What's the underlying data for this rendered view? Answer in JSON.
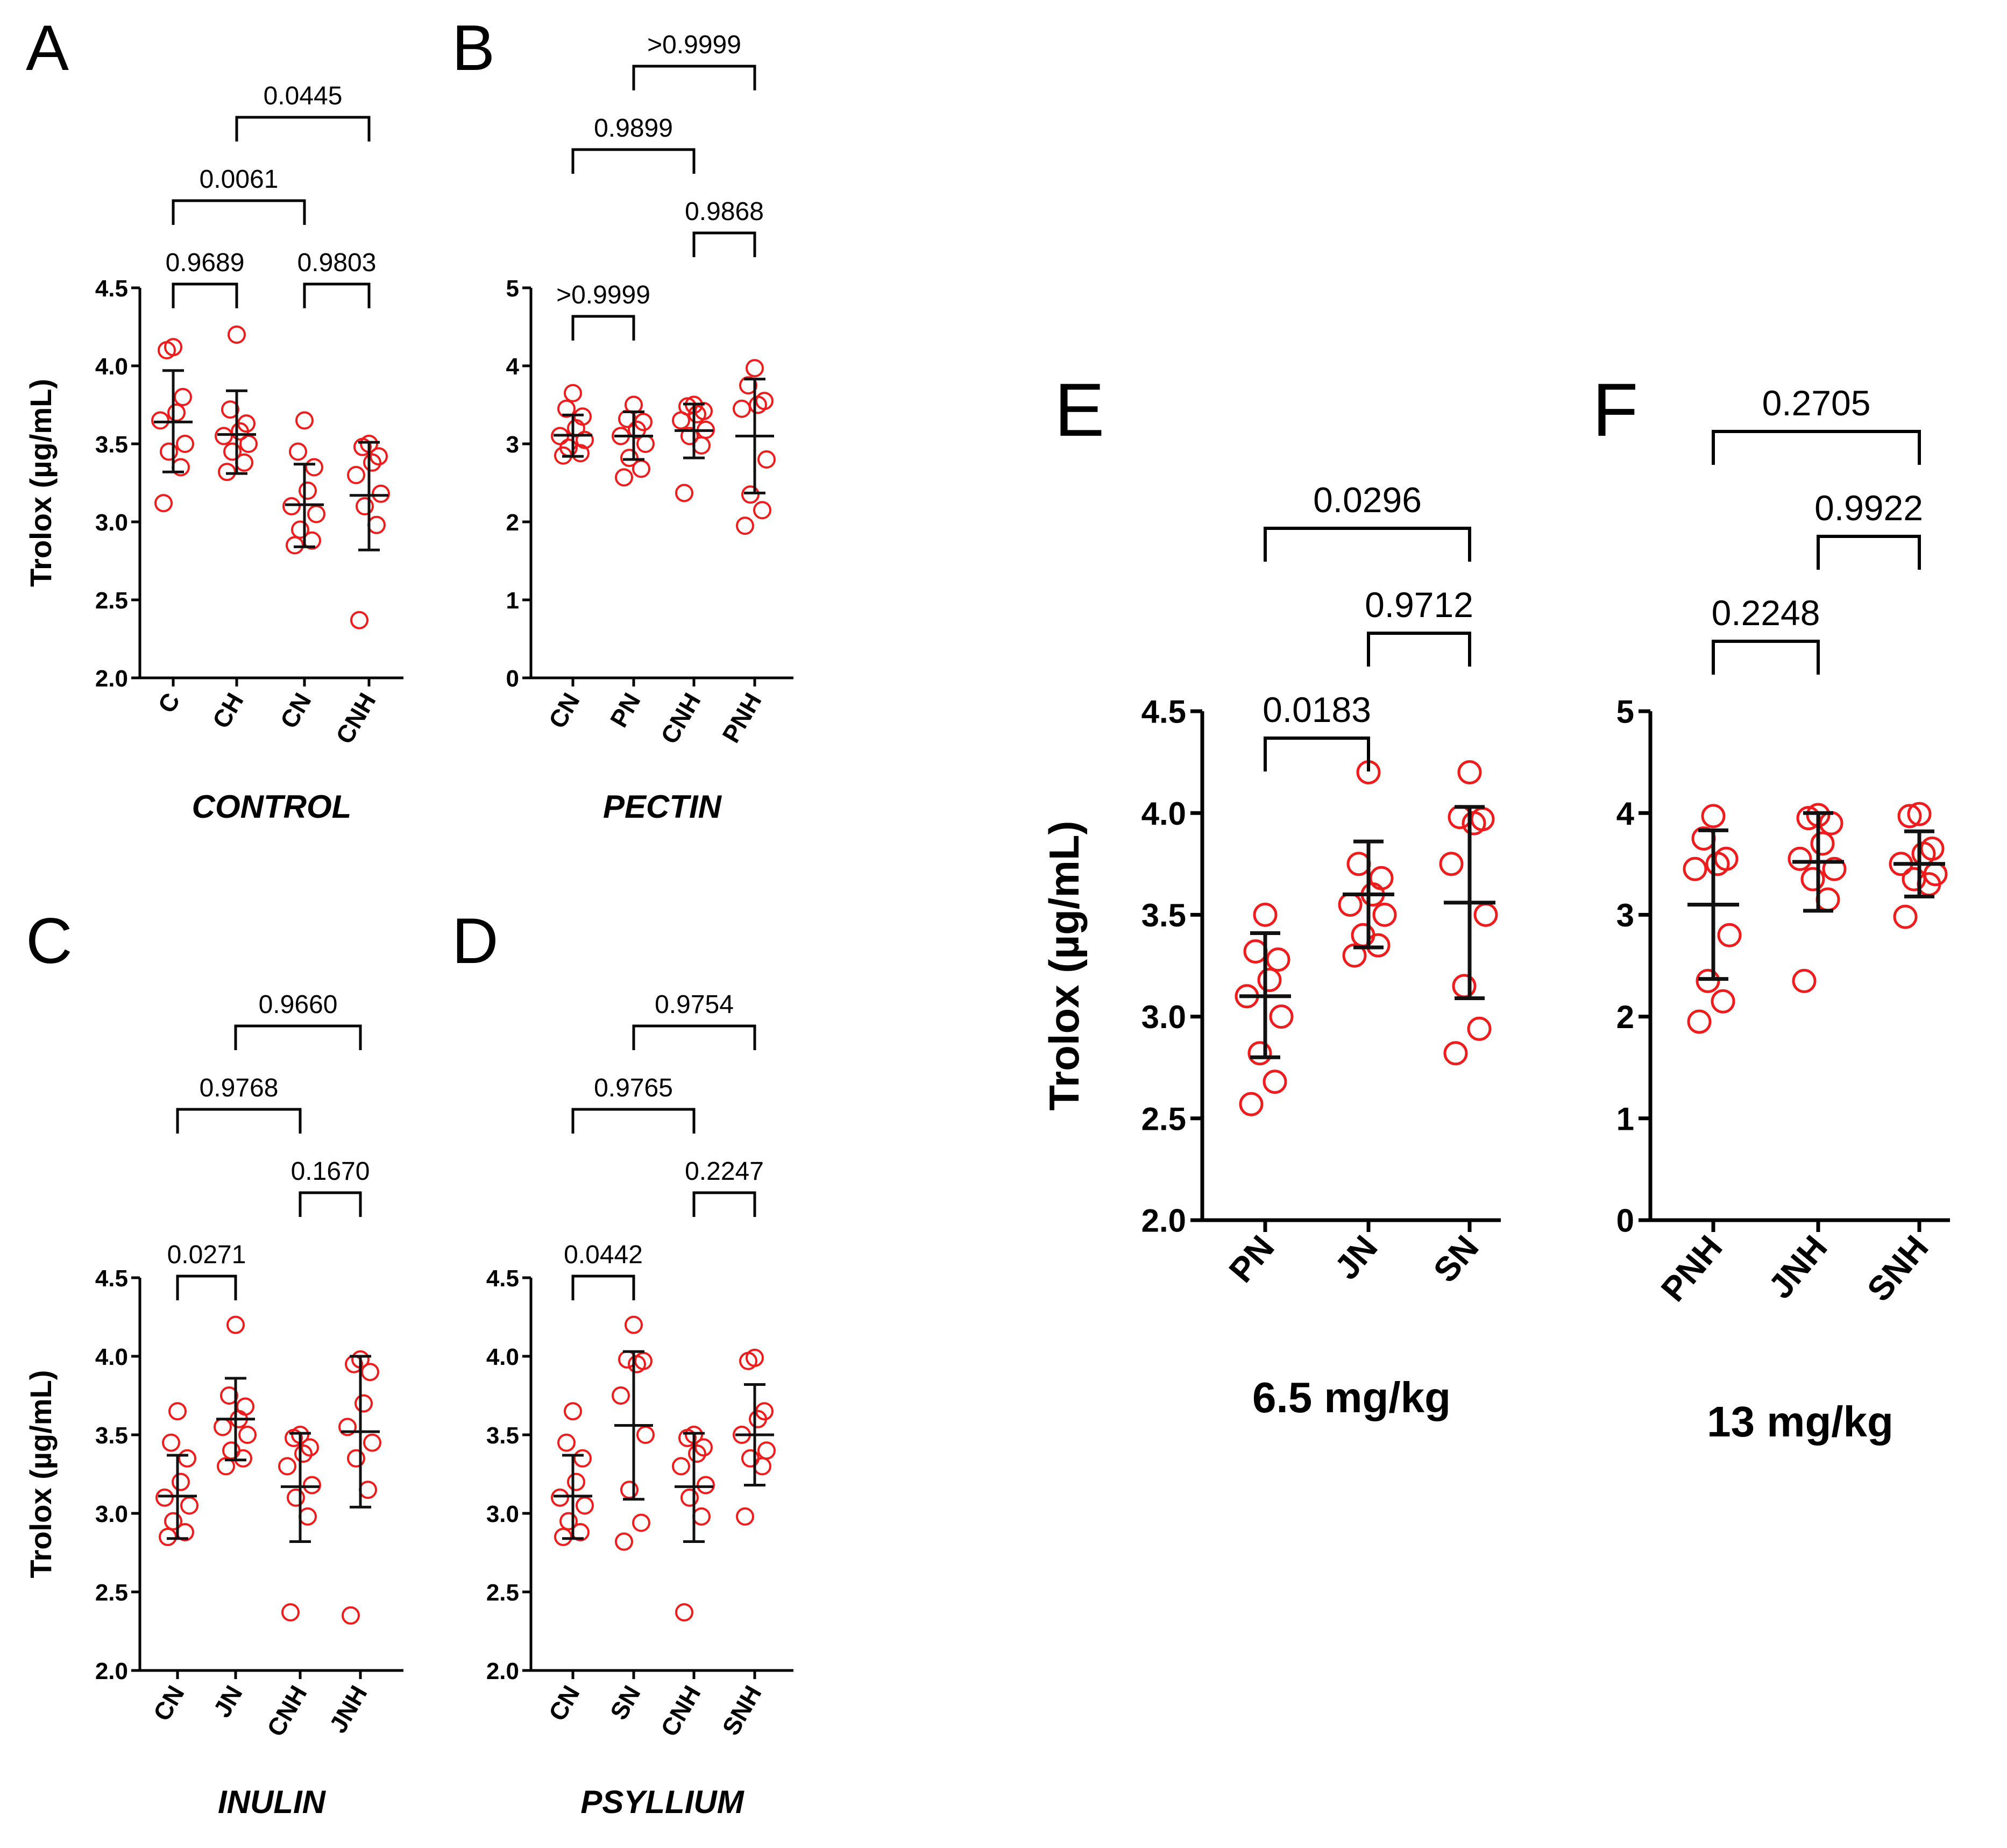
{
  "figure": {
    "y_axis_label": "Trolox (µg/mL)"
  },
  "chart_data": [
    {
      "panel": "A",
      "type": "scatter",
      "title": "CONTROL",
      "ylabel": "Trolox (µg/mL)",
      "ylim": [
        2.0,
        4.5
      ],
      "yticks": [
        "2.0",
        "2.5",
        "3.0",
        "3.5",
        "4.0",
        "4.5"
      ],
      "categories": [
        "C",
        "CH",
        "CN",
        "CNH"
      ],
      "groups": [
        {
          "points": [
            3.12,
            3.35,
            3.45,
            3.5,
            3.65,
            3.7,
            3.8,
            4.1,
            4.12
          ],
          "mean": 3.64,
          "error_low": 3.32,
          "error_high": 3.97
        },
        {
          "points": [
            3.32,
            3.38,
            3.45,
            3.5,
            3.55,
            3.58,
            3.63,
            3.72,
            4.2
          ],
          "mean": 3.56,
          "error_low": 3.31,
          "error_high": 3.84
        },
        {
          "points": [
            2.85,
            2.88,
            2.95,
            3.05,
            3.1,
            3.2,
            3.35,
            3.45,
            3.65
          ],
          "mean": 3.11,
          "error_low": 2.84,
          "error_high": 3.37
        },
        {
          "points": [
            2.37,
            2.98,
            3.1,
            3.18,
            3.3,
            3.38,
            3.42,
            3.48,
            3.5
          ],
          "mean": 3.17,
          "error_low": 2.82,
          "error_high": 3.51
        }
      ],
      "comparisons": [
        {
          "pair": [
            0,
            1
          ],
          "p": "0.9689",
          "level": 0
        },
        {
          "pair": [
            2,
            3
          ],
          "p": "0.9803",
          "level": 0
        },
        {
          "pair": [
            0,
            2
          ],
          "p": "0.0061",
          "level": 1
        },
        {
          "pair": [
            1,
            3
          ],
          "p": "0.0445",
          "level": 2
        }
      ]
    },
    {
      "panel": "B",
      "type": "scatter",
      "title": "PECTIN",
      "ylabel": "",
      "ylim": [
        0,
        5
      ],
      "yticks": [
        "0",
        "1",
        "2",
        "3",
        "4",
        "5"
      ],
      "categories": [
        "CN",
        "PN",
        "CNH",
        "PNH"
      ],
      "groups": [
        {
          "points": [
            2.85,
            2.88,
            2.95,
            3.05,
            3.1,
            3.2,
            3.35,
            3.45,
            3.65
          ],
          "mean": 3.11,
          "error_low": 2.84,
          "error_high": 3.37
        },
        {
          "points": [
            2.57,
            2.68,
            2.82,
            3.0,
            3.1,
            3.18,
            3.28,
            3.32,
            3.5
          ],
          "mean": 3.1,
          "error_low": 2.8,
          "error_high": 3.41
        },
        {
          "points": [
            2.37,
            2.98,
            3.1,
            3.18,
            3.3,
            3.38,
            3.42,
            3.48,
            3.5
          ],
          "mean": 3.17,
          "error_low": 2.82,
          "error_high": 3.51
        },
        {
          "points": [
            1.95,
            2.15,
            2.35,
            2.8,
            3.45,
            3.5,
            3.55,
            3.75,
            3.97
          ],
          "mean": 3.1,
          "error_low": 2.37,
          "error_high": 3.83
        }
      ],
      "comparisons": [
        {
          "pair": [
            0,
            1
          ],
          "p": ">0.9999",
          "level": 0
        },
        {
          "pair": [
            2,
            3
          ],
          "p": "0.9868",
          "level": 1
        },
        {
          "pair": [
            0,
            2
          ],
          "p": "0.9899",
          "level": 2
        },
        {
          "pair": [
            1,
            3
          ],
          "p": ">0.9999",
          "level": 3
        }
      ]
    },
    {
      "panel": "C",
      "type": "scatter",
      "title": "INULIN",
      "ylabel": "Trolox (µg/mL)",
      "ylim": [
        2.0,
        4.5
      ],
      "yticks": [
        "2.0",
        "2.5",
        "3.0",
        "3.5",
        "4.0",
        "4.5"
      ],
      "categories": [
        "CN",
        "JN",
        "CNH",
        "JNH"
      ],
      "groups": [
        {
          "points": [
            2.85,
            2.88,
            2.95,
            3.05,
            3.1,
            3.2,
            3.35,
            3.45,
            3.65
          ],
          "mean": 3.11,
          "error_low": 2.84,
          "error_high": 3.37
        },
        {
          "points": [
            3.3,
            3.35,
            3.4,
            3.5,
            3.55,
            3.6,
            3.68,
            3.75,
            4.2
          ],
          "mean": 3.6,
          "error_low": 3.34,
          "error_high": 3.86
        },
        {
          "points": [
            2.37,
            2.98,
            3.1,
            3.18,
            3.3,
            3.38,
            3.42,
            3.48,
            3.5
          ],
          "mean": 3.17,
          "error_low": 2.82,
          "error_high": 3.51
        },
        {
          "points": [
            2.35,
            3.15,
            3.35,
            3.45,
            3.55,
            3.7,
            3.9,
            3.95,
            3.98
          ],
          "mean": 3.52,
          "error_low": 3.04,
          "error_high": 4.0
        }
      ],
      "comparisons": [
        {
          "pair": [
            0,
            1
          ],
          "p": "0.0271",
          "level": 0
        },
        {
          "pair": [
            2,
            3
          ],
          "p": "0.1670",
          "level": 1
        },
        {
          "pair": [
            0,
            2
          ],
          "p": "0.9768",
          "level": 2
        },
        {
          "pair": [
            1,
            3
          ],
          "p": "0.9660",
          "level": 3
        }
      ]
    },
    {
      "panel": "D",
      "type": "scatter",
      "title": "PSYLLIUM",
      "ylabel": "",
      "ylim": [
        2.0,
        4.5
      ],
      "yticks": [
        "2.0",
        "2.5",
        "3.0",
        "3.5",
        "4.0",
        "4.5"
      ],
      "categories": [
        "CN",
        "SN",
        "CNH",
        "SNH"
      ],
      "groups": [
        {
          "points": [
            2.85,
            2.88,
            2.95,
            3.05,
            3.1,
            3.2,
            3.35,
            3.45,
            3.65
          ],
          "mean": 3.11,
          "error_low": 2.84,
          "error_high": 3.37
        },
        {
          "points": [
            2.82,
            2.94,
            3.15,
            3.5,
            3.75,
            3.95,
            3.97,
            3.98,
            4.2
          ],
          "mean": 3.56,
          "error_low": 3.09,
          "error_high": 4.03
        },
        {
          "points": [
            2.37,
            2.98,
            3.1,
            3.18,
            3.3,
            3.38,
            3.42,
            3.48,
            3.5
          ],
          "mean": 3.17,
          "error_low": 2.82,
          "error_high": 3.51
        },
        {
          "points": [
            2.98,
            3.3,
            3.35,
            3.4,
            3.5,
            3.6,
            3.65,
            3.97,
            3.99
          ],
          "mean": 3.5,
          "error_low": 3.18,
          "error_high": 3.82
        }
      ],
      "comparisons": [
        {
          "pair": [
            0,
            1
          ],
          "p": "0.0442",
          "level": 0
        },
        {
          "pair": [
            2,
            3
          ],
          "p": "0.2247",
          "level": 1
        },
        {
          "pair": [
            0,
            2
          ],
          "p": "0.9765",
          "level": 2
        },
        {
          "pair": [
            1,
            3
          ],
          "p": "0.9754",
          "level": 3
        }
      ]
    },
    {
      "panel": "E",
      "type": "scatter",
      "title": "6.5 mg/kg",
      "ylabel": "Trolox (µg/mL)",
      "ylim": [
        2.0,
        4.5
      ],
      "yticks": [
        "2.0",
        "2.5",
        "3.0",
        "3.5",
        "4.0",
        "4.5"
      ],
      "categories": [
        "PN",
        "JN",
        "SN"
      ],
      "groups": [
        {
          "points": [
            2.57,
            2.68,
            2.82,
            3.0,
            3.1,
            3.18,
            3.28,
            3.32,
            3.5
          ],
          "mean": 3.1,
          "error_low": 2.8,
          "error_high": 3.41
        },
        {
          "points": [
            3.3,
            3.35,
            3.4,
            3.5,
            3.55,
            3.6,
            3.68,
            3.75,
            4.2
          ],
          "mean": 3.6,
          "error_low": 3.34,
          "error_high": 3.86
        },
        {
          "points": [
            2.82,
            2.94,
            3.15,
            3.5,
            3.75,
            3.95,
            3.97,
            3.98,
            4.2
          ],
          "mean": 3.56,
          "error_low": 3.09,
          "error_high": 4.03
        }
      ],
      "comparisons": [
        {
          "pair": [
            0,
            1
          ],
          "p": "0.0183",
          "level": 0
        },
        {
          "pair": [
            1,
            2
          ],
          "p": "0.9712",
          "level": 1
        },
        {
          "pair": [
            0,
            2
          ],
          "p": "0.0296",
          "level": 2
        }
      ]
    },
    {
      "panel": "F",
      "type": "scatter",
      "title": "13 mg/kg",
      "ylabel": "",
      "ylim": [
        0,
        5
      ],
      "yticks": [
        "0",
        "1",
        "2",
        "3",
        "4",
        "5"
      ],
      "categories": [
        "PNH",
        "JNH",
        "SNH"
      ],
      "groups": [
        {
          "points": [
            1.95,
            2.15,
            2.35,
            2.8,
            3.45,
            3.5,
            3.55,
            3.75,
            3.97
          ],
          "mean": 3.1,
          "error_low": 2.37,
          "error_high": 3.83
        },
        {
          "points": [
            2.35,
            3.15,
            3.35,
            3.45,
            3.55,
            3.7,
            3.9,
            3.95,
            3.98
          ],
          "mean": 3.52,
          "error_low": 3.04,
          "error_high": 4.0
        },
        {
          "points": [
            2.98,
            3.3,
            3.35,
            3.4,
            3.5,
            3.6,
            3.65,
            3.97,
            3.99
          ],
          "mean": 3.5,
          "error_low": 3.18,
          "error_high": 3.82
        }
      ],
      "comparisons": [
        {
          "pair": [
            0,
            1
          ],
          "p": "0.2248",
          "level": 0
        },
        {
          "pair": [
            1,
            2
          ],
          "p": "0.9922",
          "level": 1
        },
        {
          "pair": [
            0,
            2
          ],
          "p": "0.2705",
          "level": 2
        }
      ]
    }
  ]
}
